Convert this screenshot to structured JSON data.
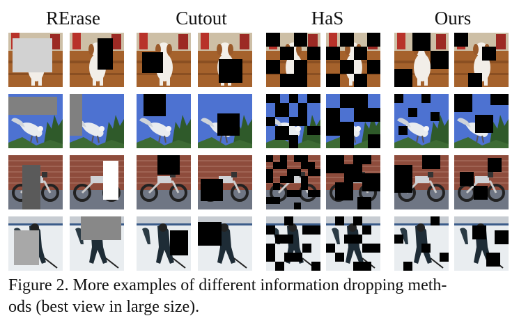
{
  "header": {
    "columns": [
      "RErase",
      "Cutout",
      "HaS",
      "Ours"
    ]
  },
  "caption": {
    "lines": [
      "Figure 2. More examples of different information dropping meth-",
      "ods (best view in large size)."
    ]
  }
}
